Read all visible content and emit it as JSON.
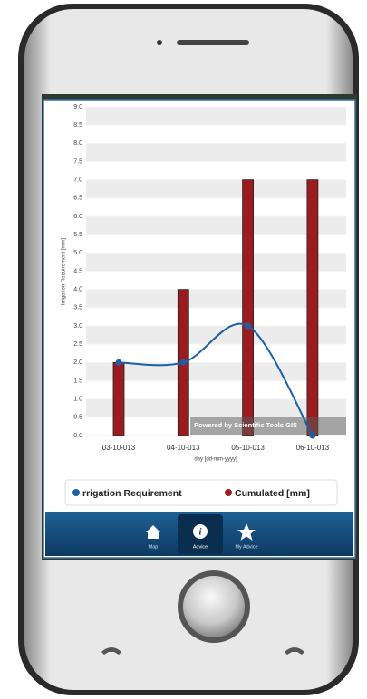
{
  "chart_data": {
    "type": "combo",
    "y_axis_title": "Irrigation Requirement [mm]",
    "x_axis_title": "day [dd-mm-yyyy]",
    "categories": [
      "03-10-013",
      "04-10-013",
      "05-10-013",
      "06-10-013"
    ],
    "series": [
      {
        "name": "rrigation Requirement",
        "type": "line",
        "color": "#1d5ea8",
        "values": [
          2,
          2,
          3,
          0
        ]
      },
      {
        "name": "Cumulated [mm]",
        "type": "bar",
        "color": "#9b1b1f",
        "values": [
          2,
          4,
          7,
          7
        ]
      }
    ],
    "ylim": [
      0,
      9
    ],
    "yticks": [
      {
        "value": 0,
        "label": "0.0"
      },
      0.5,
      {
        "value": 1,
        "label": "1.0"
      },
      1.5,
      {
        "value": 2,
        "label": "2.0"
      },
      2.5,
      {
        "value": 3,
        "label": "3.0"
      },
      3.5,
      {
        "value": 4,
        "label": "4.0"
      },
      4.5,
      {
        "value": 5,
        "label": "5.0"
      },
      5.5,
      {
        "value": 6,
        "label": "6.0"
      },
      6.5,
      {
        "value": 7,
        "label": "7.0"
      },
      7.5,
      {
        "value": 8,
        "label": "8.0"
      },
      8.5,
      {
        "value": 9,
        "label": "9.0"
      }
    ],
    "grid": true,
    "credit": "Powered by Scientific Tools GIS"
  },
  "nav": [
    {
      "label": "Map"
    },
    {
      "label": "Advice"
    },
    {
      "label": "My Advice"
    }
  ]
}
